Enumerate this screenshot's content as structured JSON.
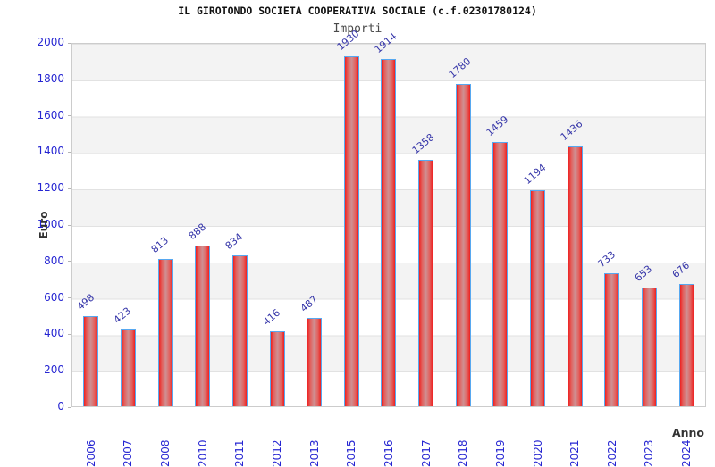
{
  "chart": {
    "colors": {
      "bar_edge": "#ee2020",
      "bar_mid": "#e2615e",
      "bar_center": "#cf9093",
      "bar_border": "#57a8f0",
      "label_blue": "#3434a8",
      "axis_blue": "#2626d2",
      "band_gray": "#f3f3f3",
      "grid_line": "#e2e2e2",
      "plot_border": "#cccccc",
      "title_color": "#111111",
      "subtitle_color": "#4a4a4a",
      "axis_title_color": "#333333"
    }
  },
  "chart_data": {
    "type": "bar",
    "title": "IL GIROTONDO SOCIETA COOPERATIVA SOCIALE (c.f.02301780124)",
    "subtitle": "Importi",
    "xlabel": "Anno",
    "ylabel": "Euro",
    "categories": [
      "2006",
      "2007",
      "2008",
      "2010",
      "2011",
      "2012",
      "2013",
      "2015",
      "2016",
      "2017",
      "2018",
      "2019",
      "2020",
      "2021",
      "2022",
      "2023",
      "2024"
    ],
    "values": [
      498,
      423,
      813,
      888,
      834,
      416,
      487,
      1930,
      1914,
      1358,
      1780,
      1459,
      1194,
      1436,
      733,
      653,
      676
    ],
    "ylim": [
      0,
      2000
    ],
    "yticks": [
      0,
      200,
      400,
      600,
      800,
      1000,
      1200,
      1400,
      1600,
      1800,
      2000
    ],
    "grid": "horizontal alternating bands, gridline every 200",
    "legend": "none",
    "bar_label_rotation_deg": -40,
    "x_label_rotation_deg": -90
  }
}
